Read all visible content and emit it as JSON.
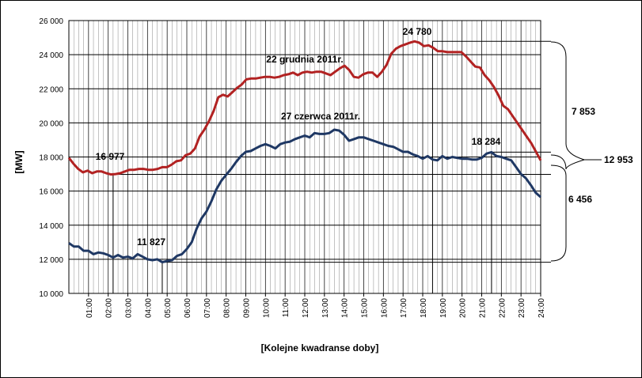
{
  "chart_data": {
    "type": "line",
    "xlabel": "[Kolejne kwadranse doby]",
    "ylabel": "[MW]",
    "ylim": [
      10000,
      26000
    ],
    "yticks": [
      "10 000",
      "12 000",
      "14 000",
      "16 000",
      "18 000",
      "20 000",
      "22 000",
      "24 000",
      "26 000"
    ],
    "ytick_values": [
      10000,
      12000,
      14000,
      16000,
      18000,
      20000,
      22000,
      24000,
      26000
    ],
    "xlim": [
      0,
      96
    ],
    "xtick_labels": [
      "01:00",
      "02:00",
      "03:00",
      "04:00",
      "05:00",
      "06:00",
      "07:00",
      "08:00",
      "09:00",
      "10:00",
      "11:00",
      "12:00",
      "13:00",
      "14:00",
      "15:00",
      "16:00",
      "17:00",
      "18:00",
      "19:00",
      "20:00",
      "21:00",
      "22:00",
      "23:00",
      "24:00"
    ],
    "grid": true,
    "series": [
      {
        "name": "22 grudnia 2011r.",
        "color": "#b22222",
        "values": [
          17950,
          17600,
          17300,
          17100,
          17200,
          17050,
          17150,
          17150,
          17050,
          16977,
          17000,
          17050,
          17150,
          17250,
          17250,
          17300,
          17300,
          17250,
          17250,
          17300,
          17400,
          17400,
          17550,
          17750,
          17800,
          18100,
          18200,
          18500,
          19200,
          19600,
          20100,
          20700,
          21500,
          21650,
          21550,
          21800,
          22050,
          22250,
          22550,
          22600,
          22600,
          22650,
          22700,
          22700,
          22650,
          22700,
          22800,
          22850,
          22950,
          22800,
          22950,
          23000,
          22950,
          23000,
          23000,
          22900,
          22800,
          23000,
          23200,
          23350,
          23100,
          22700,
          22650,
          22850,
          22950,
          22950,
          22700,
          23000,
          23400,
          24050,
          24350,
          24500,
          24600,
          24700,
          24780,
          24700,
          24500,
          24550,
          24400,
          24200,
          24200,
          24150,
          24150,
          24150,
          24150,
          23900,
          23600,
          23300,
          23250,
          22800,
          22500,
          22100,
          21600,
          21000,
          20800,
          20400,
          20000,
          19600,
          19200,
          18800,
          18300,
          17800
        ]
      },
      {
        "name": "27 czerwca 2011r.",
        "color": "#1f3864",
        "values": [
          12950,
          12750,
          12750,
          12500,
          12500,
          12300,
          12400,
          12350,
          12250,
          12100,
          12250,
          12100,
          12150,
          12050,
          12300,
          12150,
          12000,
          11950,
          12000,
          11827,
          11900,
          11950,
          12200,
          12300,
          12600,
          13000,
          13800,
          14400,
          14800,
          15400,
          16100,
          16600,
          16950,
          17300,
          17700,
          18050,
          18300,
          18350,
          18500,
          18650,
          18750,
          18650,
          18500,
          18750,
          18850,
          18900,
          19050,
          19150,
          19250,
          19150,
          19400,
          19350,
          19350,
          19400,
          19600,
          19550,
          19300,
          18950,
          19050,
          19150,
          19150,
          19050,
          18950,
          18850,
          18750,
          18650,
          18600,
          18450,
          18300,
          18300,
          18150,
          18050,
          17900,
          18050,
          17850,
          17800,
          18050,
          17900,
          18000,
          17950,
          17900,
          17900,
          17850,
          17850,
          17950,
          18200,
          18284,
          18050,
          18000,
          17900,
          17800,
          17400,
          17000,
          16750,
          16350,
          15900,
          15650
        ]
      }
    ],
    "annotations": [
      {
        "text": "22 grudnia 2011r."
      },
      {
        "text": "27 czerwca 2011r."
      },
      {
        "text": "24 780"
      },
      {
        "text": "16 977"
      },
      {
        "text": "18 284"
      },
      {
        "text": "11 827"
      },
      {
        "text": "7 853"
      },
      {
        "text": "6 456"
      },
      {
        "text": "12 953"
      }
    ]
  }
}
